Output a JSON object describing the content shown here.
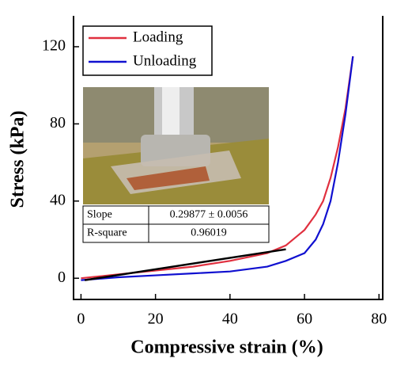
{
  "chart_data": {
    "type": "line",
    "xlabel": "Compressive strain (%)",
    "ylabel": "Stress (kPa)",
    "x": [
      0,
      10,
      20,
      30,
      40,
      50,
      55,
      60,
      63,
      65,
      67,
      69,
      71,
      73
    ],
    "series": [
      {
        "name": "Loading",
        "color": "#e0303f",
        "values": [
          0,
          2,
          4,
          6,
          9,
          13,
          17,
          25,
          33,
          40,
          52,
          68,
          88,
          115
        ]
      },
      {
        "name": "Unloading",
        "color": "#1010d0",
        "values": [
          -1,
          0.5,
          1.5,
          2.5,
          3.5,
          6,
          9,
          13,
          20,
          28,
          40,
          60,
          85,
          115
        ]
      }
    ],
    "fit": {
      "x": [
        1,
        55
      ],
      "values": [
        -1,
        15
      ],
      "color": "#000000"
    },
    "inset_table": {
      "rows": [
        [
          "Slope",
          "0.29877 ± 0.0056"
        ],
        [
          "R-square",
          "0.96019"
        ]
      ]
    },
    "xlim": [
      -2,
      81
    ],
    "ylim": [
      -11,
      136
    ],
    "xticks": [
      0,
      20,
      40,
      60,
      80
    ],
    "yticks": [
      0,
      40,
      80,
      120
    ],
    "grid": false,
    "legend": "upper left"
  }
}
